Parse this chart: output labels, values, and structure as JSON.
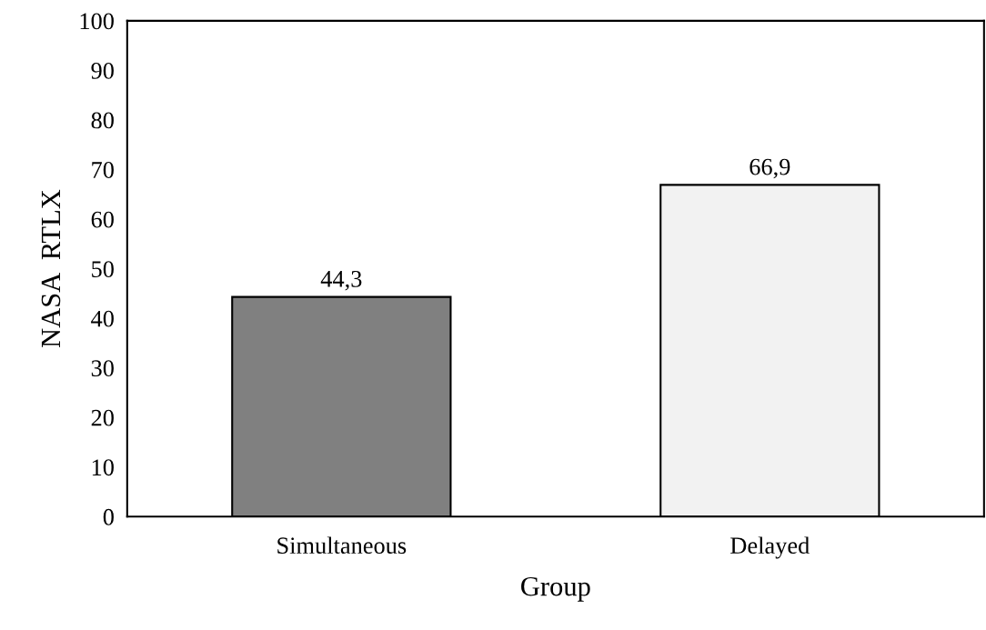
{
  "chart_data": {
    "type": "bar",
    "xlabel": "Group",
    "ylabel": "NASA  RTLX",
    "categories": [
      "Simultaneous",
      "Delayed"
    ],
    "values": [
      44.3,
      66.9
    ],
    "colors": [
      "#808080",
      "#f2f2f2"
    ],
    "value_labels": [
      "44,3",
      "66,9"
    ],
    "ylim": [
      0,
      100
    ],
    "yticks": [
      0,
      10,
      20,
      30,
      40,
      50,
      60,
      70,
      80,
      90,
      100
    ],
    "grid": false
  }
}
